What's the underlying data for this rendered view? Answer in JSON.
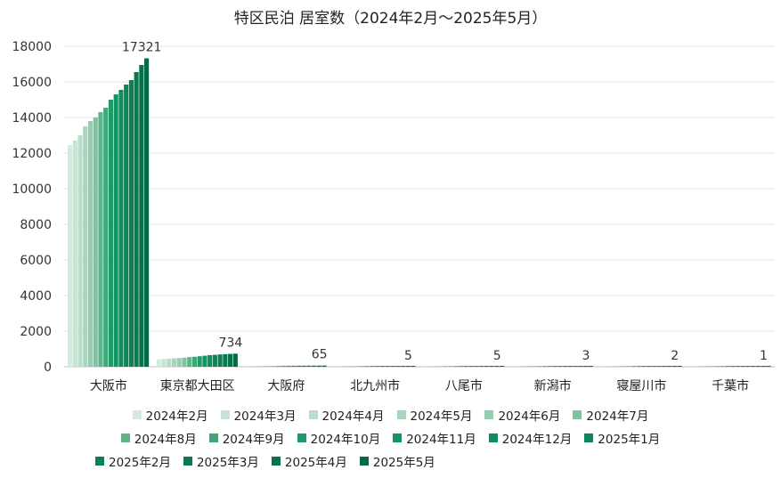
{
  "chart_data": {
    "type": "bar",
    "title": "特区民泊 居室数（2024年2月～2025年5月）",
    "categories": [
      "大阪市",
      "東京都大田区",
      "大阪府",
      "北九州市",
      "八尾市",
      "新潟市",
      "寝屋川市",
      "千葉市"
    ],
    "ylim": [
      0,
      18000
    ],
    "yticks": [
      0,
      2000,
      4000,
      6000,
      8000,
      10000,
      12000,
      14000,
      16000,
      18000
    ],
    "grid": true,
    "legend_position": "bottom",
    "series": [
      {
        "name": "2024年2月",
        "color": "#d3eadd",
        "values": [
          12450,
          420,
          40,
          3,
          3,
          2,
          1,
          1
        ]
      },
      {
        "name": "2024年3月",
        "color": "#c6e4d3",
        "values": [
          12700,
          440,
          42,
          3,
          3,
          2,
          1,
          1
        ]
      },
      {
        "name": "2024年4月",
        "color": "#b8ddc9",
        "values": [
          13000,
          455,
          44,
          3,
          3,
          2,
          1,
          1
        ]
      },
      {
        "name": "2024年5月",
        "color": "#a8d6bd",
        "values": [
          13500,
          470,
          46,
          4,
          4,
          2,
          1,
          1
        ]
      },
      {
        "name": "2024年6月",
        "color": "#94cdb0",
        "values": [
          13800,
          490,
          48,
          4,
          4,
          3,
          2,
          1
        ]
      },
      {
        "name": "2024年7月",
        "color": "#7fc4a2",
        "values": [
          14000,
          510,
          50,
          4,
          4,
          3,
          2,
          1
        ]
      },
      {
        "name": "2024年8月",
        "color": "#5fb48a",
        "values": [
          14300,
          540,
          52,
          4,
          4,
          3,
          2,
          1
        ]
      },
      {
        "name": "2024年9月",
        "color": "#3fa778",
        "values": [
          14550,
          560,
          54,
          4,
          4,
          3,
          2,
          1
        ]
      },
      {
        "name": "2024年10月",
        "color": "#1e9b68",
        "values": [
          15000,
          590,
          56,
          5,
          5,
          3,
          2,
          1
        ]
      },
      {
        "name": "2024年11月",
        "color": "#109563",
        "values": [
          15300,
          620,
          58,
          5,
          5,
          3,
          2,
          1
        ]
      },
      {
        "name": "2024年12月",
        "color": "#0e8e5e",
        "values": [
          15550,
          650,
          60,
          5,
          5,
          3,
          2,
          1
        ]
      },
      {
        "name": "2025年1月",
        "color": "#0c8758",
        "values": [
          15850,
          670,
          61,
          5,
          5,
          3,
          2,
          1
        ]
      },
      {
        "name": "2025年2月",
        "color": "#0a8053",
        "values": [
          16100,
          690,
          62,
          5,
          5,
          3,
          2,
          1
        ]
      },
      {
        "name": "2025年3月",
        "color": "#09794e",
        "values": [
          16550,
          705,
          63,
          5,
          5,
          3,
          2,
          1
        ]
      },
      {
        "name": "2025年4月",
        "color": "#077149",
        "values": [
          16950,
          720,
          64,
          5,
          5,
          3,
          2,
          1
        ]
      },
      {
        "name": "2025年5月",
        "color": "#056a43",
        "values": [
          17321,
          734,
          65,
          5,
          5,
          3,
          2,
          1
        ]
      }
    ],
    "data_labels": [
      "17321",
      "734",
      "65",
      "5",
      "5",
      "3",
      "2",
      "1"
    ]
  }
}
